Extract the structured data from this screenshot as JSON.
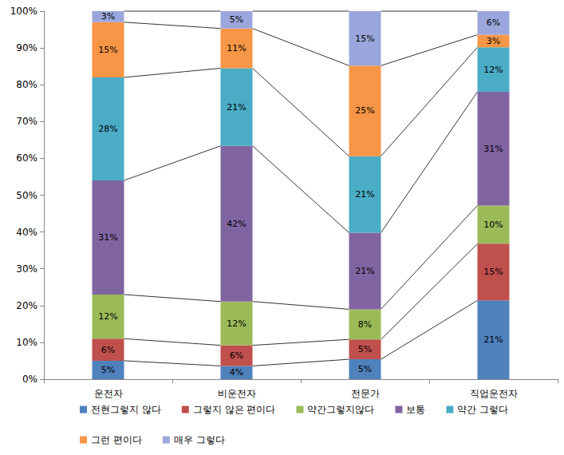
{
  "chart_data": {
    "type": "bar",
    "stacked": true,
    "data_labels": true,
    "grid": false,
    "legend": "bottom",
    "categories": [
      "운전자",
      "비운전자",
      "전문가",
      "직업운전자"
    ],
    "ylim": [
      0,
      100
    ],
    "yticks": [
      {
        "value": 0,
        "label": "0%"
      },
      {
        "value": 10,
        "label": "10%"
      },
      {
        "value": 20,
        "label": "20%"
      },
      {
        "value": 30,
        "label": "30%"
      },
      {
        "value": 40,
        "label": "40%"
      },
      {
        "value": 50,
        "label": "50%"
      },
      {
        "value": 60,
        "label": "60%"
      },
      {
        "value": 70,
        "label": "70%"
      },
      {
        "value": 80,
        "label": "80%"
      },
      {
        "value": 90,
        "label": "90%"
      },
      {
        "value": 100,
        "label": "100%"
      }
    ],
    "series": [
      {
        "name": "전현그렇지 않다",
        "color": "#4F81BD",
        "values": [
          5,
          3.6,
          5.4,
          21.4
        ],
        "value_labels": [
          "5%",
          "4%",
          "5%",
          "21%"
        ]
      },
      {
        "name": "그렇지 않은 편이다",
        "color": "#C0504D",
        "values": [
          6,
          5.6,
          5.4,
          15.4
        ],
        "value_labels": [
          "6%",
          "6%",
          "5%",
          "15%"
        ]
      },
      {
        "name": "약간그렇지않다",
        "color": "#9BBB59",
        "values": [
          12,
          11.9,
          8.2,
          10.4
        ],
        "value_labels": [
          "12%",
          "12%",
          "8%",
          "10%"
        ]
      },
      {
        "name": "보통",
        "color": "#8064A2",
        "values": [
          31,
          42.3,
          20.8,
          30.9
        ],
        "value_labels": [
          "31%",
          "42%",
          "21%",
          "31%"
        ]
      },
      {
        "name": "약간 그렇다",
        "color": "#4BACC6",
        "values": [
          28,
          21.1,
          20.8,
          12.1
        ],
        "value_labels": [
          "28%",
          "21%",
          "21%",
          "12%"
        ]
      },
      {
        "name": "그런 편이다",
        "color": "#F79646",
        "values": [
          15,
          10.8,
          24.6,
          3.4
        ],
        "value_labels": [
          "15%",
          "11%",
          "25%",
          "3%"
        ]
      },
      {
        "name": "매우 그렇다",
        "color": "#9BA7DC",
        "values": [
          3,
          4.7,
          14.8,
          6.4
        ],
        "value_labels": [
          "3%",
          "5%",
          "15%",
          "6%"
        ]
      }
    ]
  }
}
